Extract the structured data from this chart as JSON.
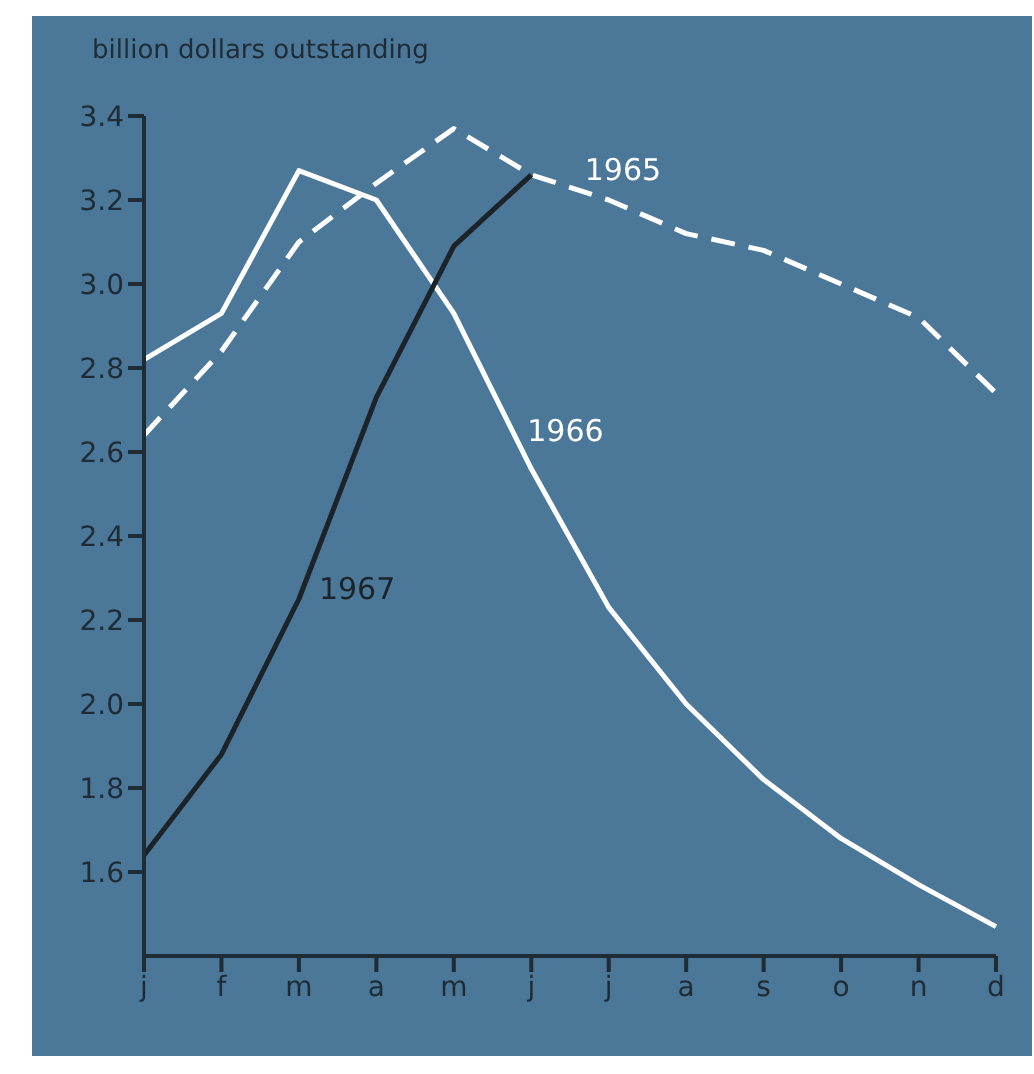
{
  "chart_data": {
    "type": "line",
    "ylabel": "billion dollars outstanding",
    "categories": [
      "j",
      "f",
      "m",
      "a",
      "m",
      "j",
      "j",
      "a",
      "s",
      "o",
      "n",
      "d"
    ],
    "series": [
      {
        "name": "1965",
        "color": "#ffffff",
        "line_style": "dashed",
        "values": [
          2.64,
          2.84,
          3.1,
          3.24,
          3.37,
          3.26,
          3.2,
          3.12,
          3.08,
          3.0,
          2.92,
          2.74
        ]
      },
      {
        "name": "1966",
        "color": "#ffffff",
        "line_style": "solid",
        "values": [
          2.82,
          2.93,
          3.27,
          3.2,
          2.93,
          2.56,
          2.23,
          2.0,
          1.82,
          1.68,
          1.57,
          1.47
        ]
      },
      {
        "name": "1967",
        "color": "#1c2329",
        "line_style": "solid",
        "values": [
          1.64,
          1.88,
          2.25,
          2.73,
          3.09,
          3.26,
          null,
          null,
          null,
          null,
          null,
          null
        ]
      }
    ],
    "ylim": [
      1.4,
      3.4
    ],
    "yticks": [
      1.6,
      1.8,
      {
        "value": 2,
        "label": "2.0"
      },
      2.2,
      2.4,
      2.6,
      2.8,
      {
        "value": 3,
        "label": "3.0"
      },
      3.2,
      3.4
    ],
    "grid": false,
    "legend": false,
    "marker": "none"
  }
}
